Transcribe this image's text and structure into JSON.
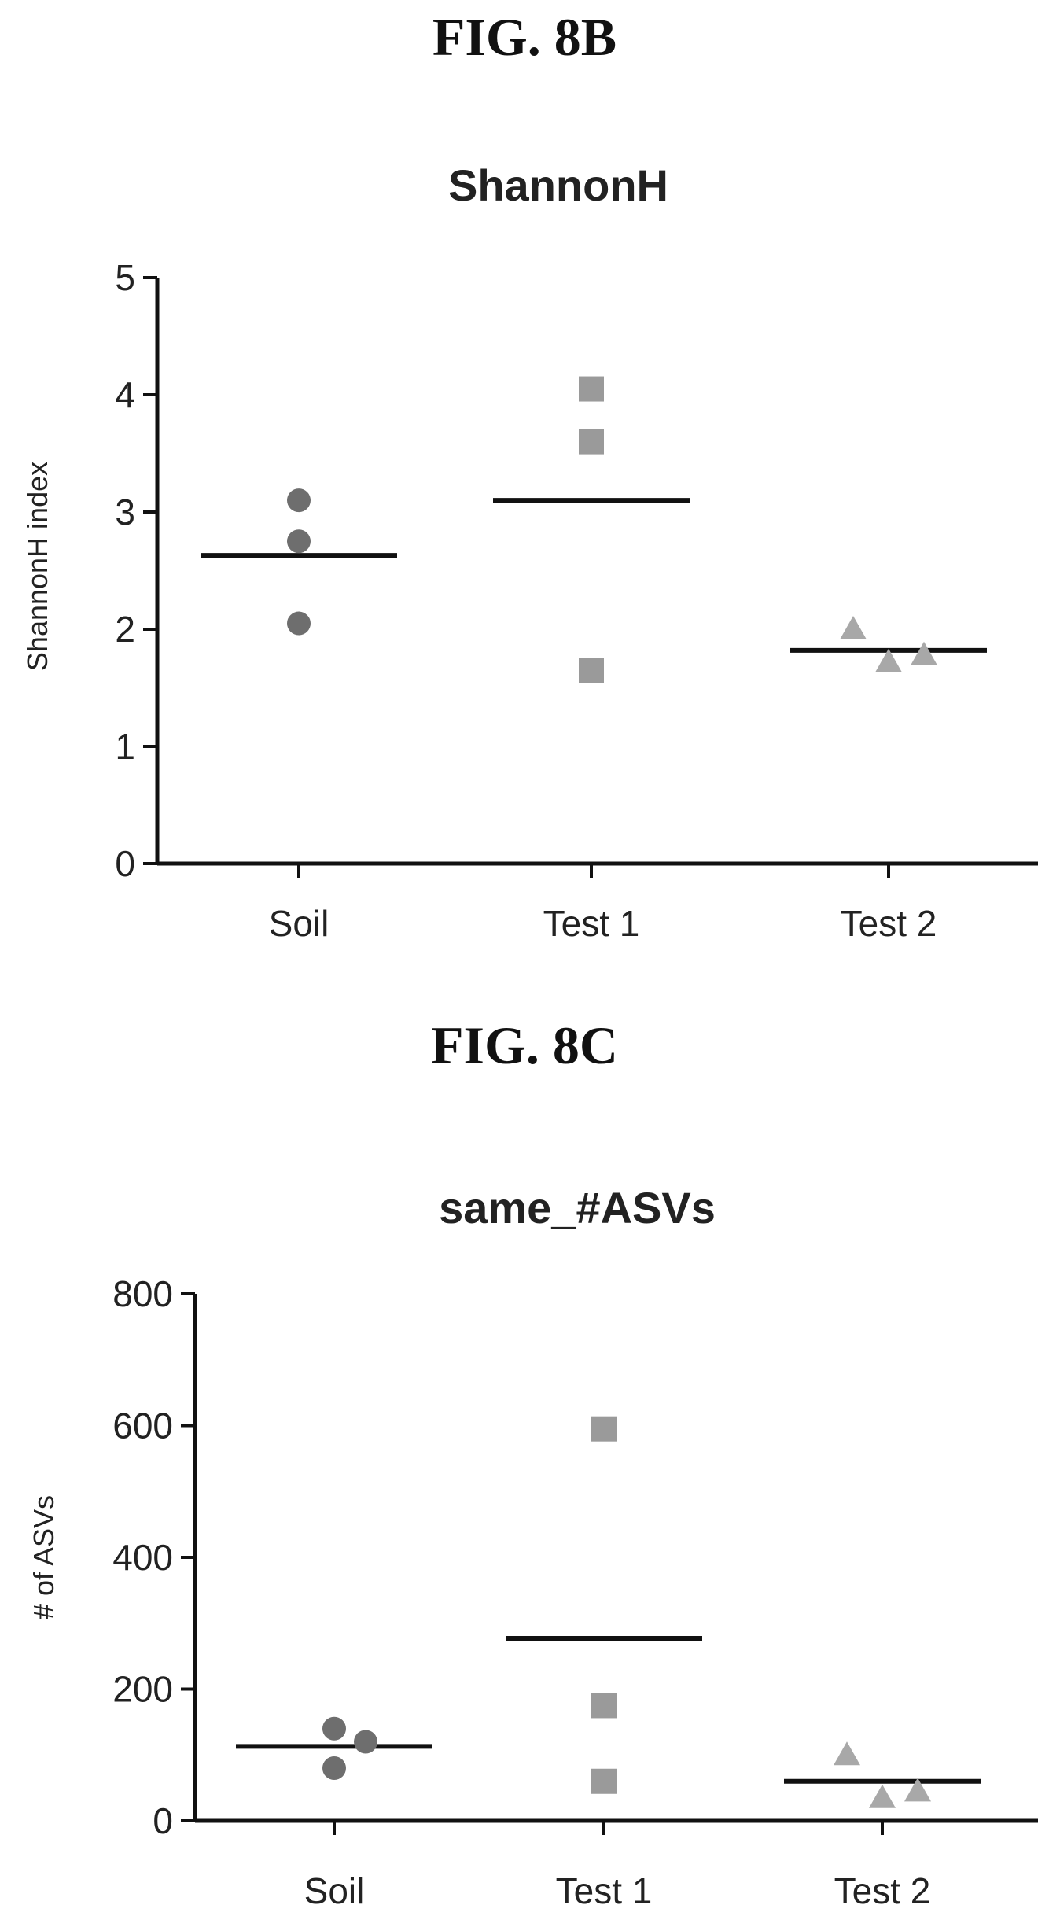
{
  "figures": [
    {
      "label": "FIG. 8B"
    },
    {
      "label": "FIG. 8C"
    }
  ],
  "colors": {
    "Soil": "#6e6e6e",
    "Test 1": "#9a9a9a",
    "Test 2": "#a8a8a8",
    "mean_line": "#111111"
  },
  "chart_data": [
    {
      "type": "scatter",
      "title": "ShannonH",
      "ylabel": "ShannonH index",
      "xlabel": "",
      "categories": [
        "Soil",
        "Test 1",
        "Test 2"
      ],
      "ylim": [
        0,
        5
      ],
      "yticks": [
        0,
        1,
        2,
        3,
        4,
        5
      ],
      "series": [
        {
          "category": "Soil",
          "marker": "circle",
          "values": [
            3.1,
            2.75,
            2.05
          ],
          "mean": 2.63
        },
        {
          "category": "Test 1",
          "marker": "square",
          "values": [
            4.05,
            3.6,
            1.65
          ],
          "mean": 3.1
        },
        {
          "category": "Test 2",
          "marker": "triangle",
          "values": [
            2.0,
            1.72,
            1.78
          ],
          "mean": 1.82
        }
      ],
      "grid": false
    },
    {
      "type": "scatter",
      "title": "same_#ASVs",
      "ylabel": "# of ASVs",
      "xlabel": "",
      "categories": [
        "Soil",
        "Test 1",
        "Test 2"
      ],
      "ylim": [
        0,
        800
      ],
      "yticks": [
        0,
        200,
        400,
        600,
        800
      ],
      "series": [
        {
          "category": "Soil",
          "marker": "circle",
          "values": [
            140,
            120,
            80
          ],
          "mean": 113
        },
        {
          "category": "Test 1",
          "marker": "square",
          "values": [
            595,
            175,
            60
          ],
          "mean": 277
        },
        {
          "category": "Test 2",
          "marker": "triangle",
          "values": [
            100,
            35,
            45
          ],
          "mean": 60
        }
      ],
      "grid": false
    }
  ]
}
